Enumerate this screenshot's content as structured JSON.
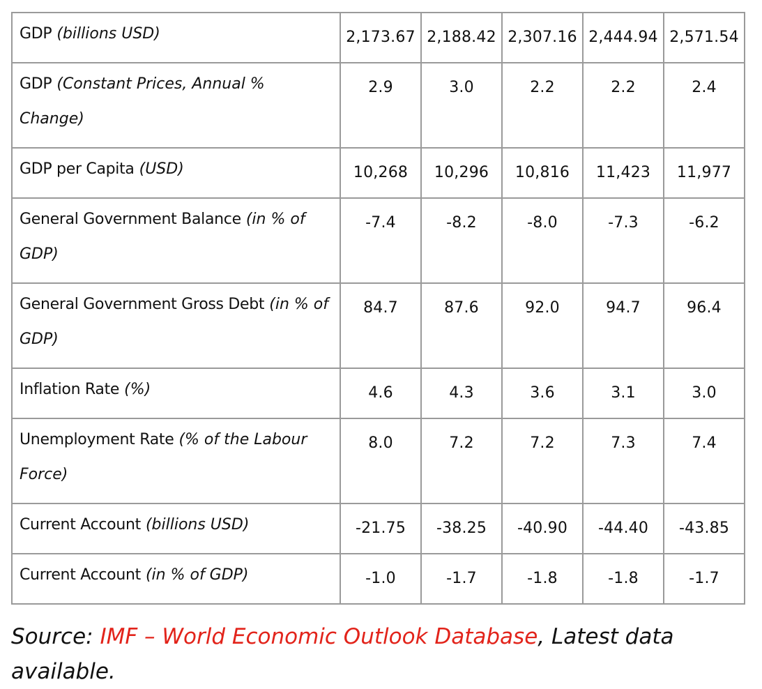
{
  "table": {
    "rows": [
      {
        "label": "GDP",
        "unit": "(billions USD)",
        "values": [
          "2,173.67",
          "2,188.42",
          "2,307.16",
          "2,444.94",
          "2,571.54"
        ]
      },
      {
        "label": "GDP",
        "unit": "(Constant Prices, Annual % Change)",
        "values": [
          "2.9",
          "3.0",
          "2.2",
          "2.2",
          "2.4"
        ]
      },
      {
        "label": "GDP per Capita",
        "unit": "(USD)",
        "values": [
          "10,268",
          "10,296",
          "10,816",
          "11,423",
          "11,977"
        ]
      },
      {
        "label": "General Government Balance",
        "unit": "(in % of GDP)",
        "values": [
          "-7.4",
          "-8.2",
          "-8.0",
          "-7.3",
          "-6.2"
        ]
      },
      {
        "label": "General Government Gross Debt",
        "unit": "(in % of GDP)",
        "values": [
          "84.7",
          "87.6",
          "92.0",
          "94.7",
          "96.4"
        ]
      },
      {
        "label": "Inflation Rate",
        "unit": "(%)",
        "values": [
          "4.6",
          "4.3",
          "3.6",
          "3.1",
          "3.0"
        ]
      },
      {
        "label": "Unemployment Rate",
        "unit": "(% of the Labour Force)",
        "values": [
          "8.0",
          "7.2",
          "7.2",
          "7.3",
          "7.4"
        ]
      },
      {
        "label": "Current Account",
        "unit": "(billions USD)",
        "values": [
          "-21.75",
          "-38.25",
          "-40.90",
          "-44.40",
          "-43.85"
        ]
      },
      {
        "label": "Current Account",
        "unit": "(in % of GDP)",
        "values": [
          "-1.0",
          "-1.7",
          "-1.8",
          "-1.8",
          "-1.7"
        ]
      }
    ]
  },
  "source": {
    "prefix": "Source: ",
    "link_text": "IMF – World Economic Outlook Database",
    "suffix": ", Latest data available."
  },
  "colors": {
    "link": "#e2231a",
    "border": "#9a9a9a"
  }
}
